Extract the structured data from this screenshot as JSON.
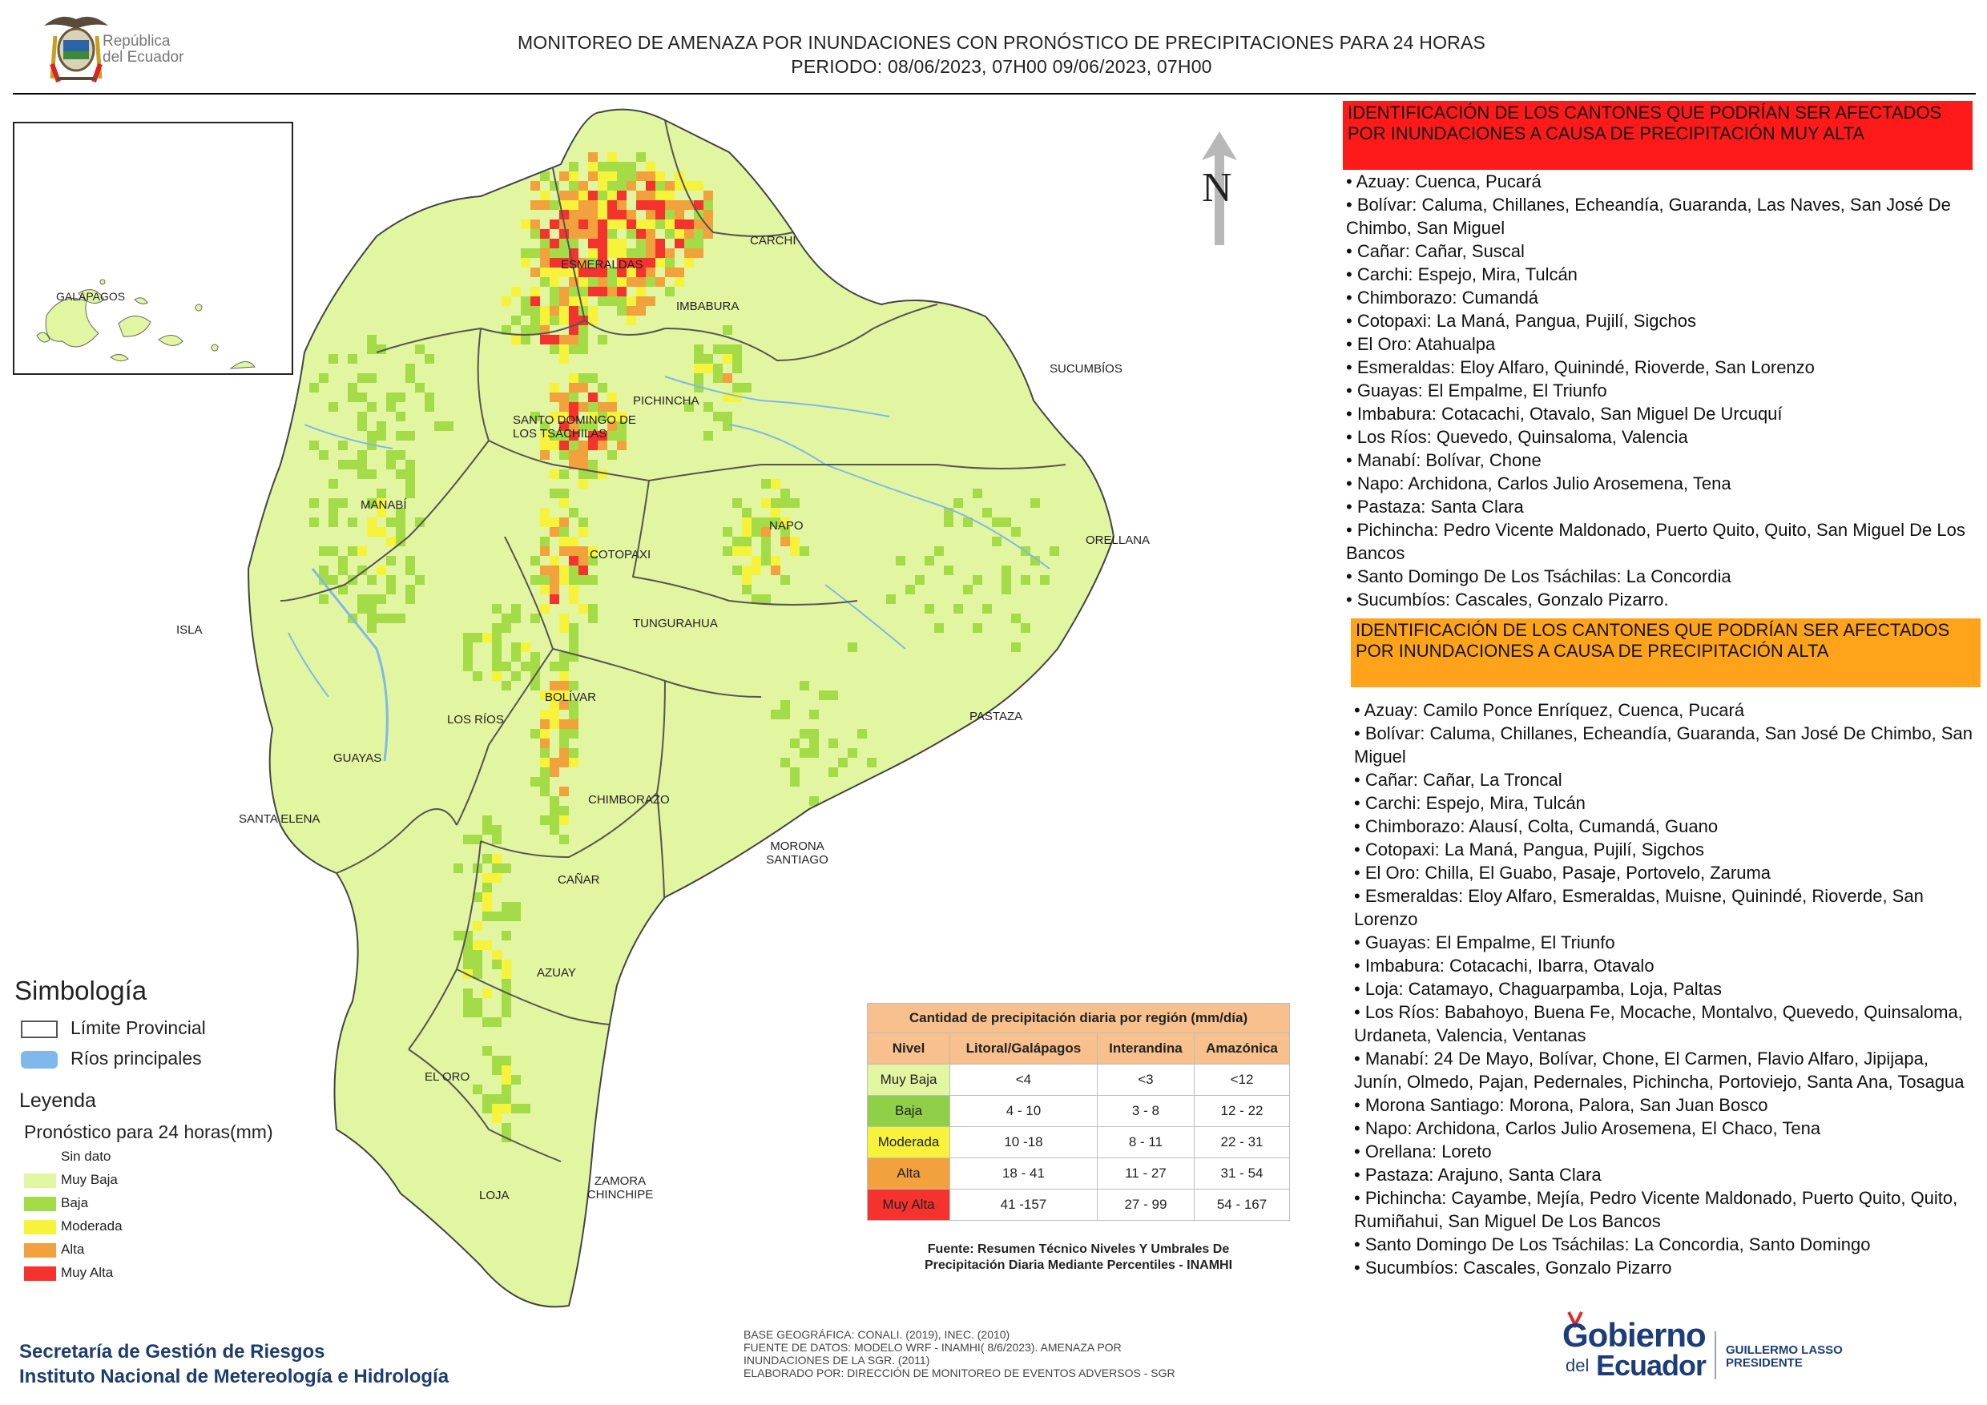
{
  "header": {
    "country_logo_text_1": "República",
    "country_logo_text_2": "del Ecuador",
    "title_line_1": "MONITOREO DE AMENAZA POR INUNDACIONES  CON PRONÓSTICO DE  PRECIPITACIONES PARA 24 HORAS",
    "title_line_2": "PERIODO: 08/06/2023, 07H00 09/06/2023, 07H00"
  },
  "inset": {
    "label": "GALÁPAGOS"
  },
  "compass": {
    "letter": "N"
  },
  "map": {
    "colors": {
      "muy_baja": "#e2f5a1",
      "baja": "#a3dc46",
      "moderada": "#f7f23a",
      "alta": "#f2a23c",
      "muy_alta": "#f5332e",
      "sin_dato": "#ffffff",
      "rivers": "#7fb8ea",
      "boundary": "#555555"
    },
    "provinces": [
      {
        "id": "esmeraldas",
        "name": "ESMERALDAS"
      },
      {
        "id": "carchi",
        "name": "CARCHI"
      },
      {
        "id": "imbabura",
        "name": "IMBABURA"
      },
      {
        "id": "sucumbios",
        "name": "SUCUMBÍOS"
      },
      {
        "id": "pichincha",
        "name": "PICHINCHA"
      },
      {
        "id": "santo-domingo",
        "name": "SANTO DOMINGO DE LOS TSÁCHILAS"
      },
      {
        "id": "manabi",
        "name": "MANABÍ"
      },
      {
        "id": "napo",
        "name": "NAPO"
      },
      {
        "id": "orellana",
        "name": "ORELLANA"
      },
      {
        "id": "cotopaxi",
        "name": "COTOPAXI"
      },
      {
        "id": "isla",
        "name": "ISLA"
      },
      {
        "id": "tungurahua",
        "name": "TUNGURAHUA"
      },
      {
        "id": "bolivar",
        "name": "BOLÍVAR"
      },
      {
        "id": "los-rios",
        "name": "LOS RÍOS"
      },
      {
        "id": "pastaza",
        "name": "PASTAZA"
      },
      {
        "id": "guayas",
        "name": "GUAYAS"
      },
      {
        "id": "chimborazo",
        "name": "CHIMBORAZO"
      },
      {
        "id": "santa-elena",
        "name": "SANTA ELENA"
      },
      {
        "id": "morona-santiago",
        "name": "MORONA SANTIAGO"
      },
      {
        "id": "canar",
        "name": "CAÑAR"
      },
      {
        "id": "azuay",
        "name": "AZUAY"
      },
      {
        "id": "el-oro",
        "name": "EL ORO"
      },
      {
        "id": "zamora-chinchipe",
        "name": "ZAMORA CHINCHIPE"
      },
      {
        "id": "loja",
        "name": "LOJA"
      }
    ]
  },
  "muy_alta_panel": {
    "heading": "IDENTIFICACIÓN DE LOS CANTONES QUE PODRÍAN SER AFECTADOS POR INUNDACIONES  A CAUSA DE PRECIPITACIÓN MUY ALTA",
    "items": [
      "• Azuay: Cuenca, Pucará",
      "• Bolívar: Caluma, Chillanes, Echeandía, Guaranda, Las Naves, San José De Chimbo, San Miguel",
      "• Cañar: Cañar, Suscal",
      "• Carchi: Espejo, Mira, Tulcán",
      "• Chimborazo: Cumandá",
      "• Cotopaxi: La Maná, Pangua, Pujilí, Sigchos",
      "• El Oro: Atahualpa",
      "• Esmeraldas: Eloy Alfaro, Quinindé, Rioverde, San Lorenzo",
      "• Guayas: El Empalme, El Triunfo",
      "• Imbabura: Cotacachi, Otavalo, San Miguel De Urcuquí",
      "• Los Ríos: Quevedo, Quinsaloma, Valencia",
      "• Manabí: Bolívar, Chone",
      "• Napo: Archidona, Carlos Julio Arosemena, Tena",
      "• Pastaza: Santa Clara",
      "• Pichincha: Pedro Vicente Maldonado, Puerto Quito, Quito, San Miguel De Los Bancos",
      "• Santo Domingo De Los Tsáchilas: La Concordia",
      "• Sucumbíos: Cascales, Gonzalo Pizarro."
    ]
  },
  "alta_panel": {
    "heading": "IDENTIFICACIÓN DE LOS CANTONES QUE  PODRÍAN SER AFECTADOS POR INUNDACIONES  A CAUSA DE PRECIPITACIÓN ALTA",
    "items": [
      "• Azuay: Camilo Ponce Enríquez, Cuenca, Pucará",
      "• Bolívar: Caluma, Chillanes, Echeandía, Guaranda, San José De Chimbo, San Miguel",
      "• Cañar: Cañar, La Troncal",
      "• Carchi: Espejo, Mira, Tulcán",
      "• Chimborazo: Alausí, Colta, Cumandá, Guano",
      "• Cotopaxi: La Maná, Pangua, Pujilí, Sigchos",
      "• El Oro: Chilla, El Guabo, Pasaje, Portovelo, Zaruma",
      "• Esmeraldas: Eloy Alfaro, Esmeraldas, Muisne, Quinindé, Rioverde, San Lorenzo",
      "• Guayas: El Empalme, El Triunfo",
      "• Imbabura: Cotacachi, Ibarra, Otavalo",
      "• Loja: Catamayo, Chaguarpamba, Loja, Paltas",
      "• Los Ríos: Babahoyo, Buena Fe, Mocache, Montalvo, Quevedo, Quinsaloma, Urdaneta, Valencia, Ventanas",
      "• Manabí: 24 De Mayo, Bolívar, Chone, El Carmen, Flavio Alfaro, Jipijapa, Junín, Olmedo, Pajan, Pedernales, Pichincha, Portoviejo, Santa Ana, Tosagua",
      "• Morona Santiago: Morona, Palora, San Juan Bosco",
      "• Napo: Archidona, Carlos Julio Arosemena, El Chaco, Tena",
      "• Orellana: Loreto",
      "• Pastaza: Arajuno, Santa Clara",
      "• Pichincha: Cayambe, Mejía, Pedro Vicente Maldonado, Puerto Quito, Quito, Rumiñahui, San Miguel De Los Bancos",
      "• Santo Domingo De Los Tsáchilas: La Concordia, Santo Domingo",
      "• Sucumbíos: Cascales, Gonzalo Pizarro"
    ]
  },
  "legend": {
    "simbologia_title": "Simbología",
    "limite_label": "Límite Provincial",
    "rios_label": "Ríos principales",
    "leyenda_title": "Leyenda",
    "pronostico_title": "Pronóstico para 24 horas(mm)",
    "classes": [
      {
        "label": "Sin dato",
        "color": "#ffffff"
      },
      {
        "label": "Muy Baja",
        "color": "#e2f5a1"
      },
      {
        "label": "Baja",
        "color": "#a3dc46"
      },
      {
        "label": "Moderada",
        "color": "#f7f23a"
      },
      {
        "label": "Alta",
        "color": "#f2a23c"
      },
      {
        "label": "Muy Alta",
        "color": "#f5332e"
      }
    ]
  },
  "precip_table": {
    "caption": "Cantidad de precipitación diaria por región (mm/día)",
    "headers": [
      "Nivel",
      "Litoral/Galápagos",
      "Interandina",
      "Amazónica"
    ],
    "rows": [
      {
        "level": "Muy Baja",
        "color": "#e2f5a1",
        "values": [
          "<4",
          "<3",
          "<12"
        ]
      },
      {
        "level": "Baja",
        "color": "#8fd048",
        "values": [
          "4 - 10",
          "3 - 8",
          "12 - 22"
        ]
      },
      {
        "level": "Moderada",
        "color": "#f7f23a",
        "values": [
          "10 -18",
          "8 - 11",
          "22 - 31"
        ]
      },
      {
        "level": "Alta",
        "color": "#f2a23c",
        "values": [
          "18 - 41",
          "11 - 27",
          "31 - 54"
        ]
      },
      {
        "level": "Muy Alta",
        "color": "#f5332e",
        "values": [
          "41 -157",
          "27 - 99",
          "54 - 167"
        ]
      }
    ],
    "source_line_1": "Fuente: Resumen Técnico Niveles Y Umbrales De",
    "source_line_2": "Precipitación Diaria Mediante Percentiles - INAMHI"
  },
  "footer": {
    "org_line_1": "Secretaría de Gestión de Riesgos",
    "org_line_2": "Instituto Nacional de Metereología e Hidrología",
    "credits_1": "BASE GEOGRÁFICA: CONALI. (2019), INEC. (2010)",
    "credits_2": "FUENTE DE DATOS: MODELO WRF - INAMHI( 8/6/2023).  AMENAZA POR",
    "credits_3": "INUNDACIONES DE LA SGR. (2011)",
    "credits_4": "ELABORADO POR: DIRECCIÓN DE MONITOREO DE EVENTOS ADVERSOS - SGR",
    "gob_1": "Gobierno",
    "gob_2": "del",
    "gob_3": "Ecuador",
    "president_1": "GUILLERMO LASSO",
    "president_2": "PRESIDENTE"
  }
}
